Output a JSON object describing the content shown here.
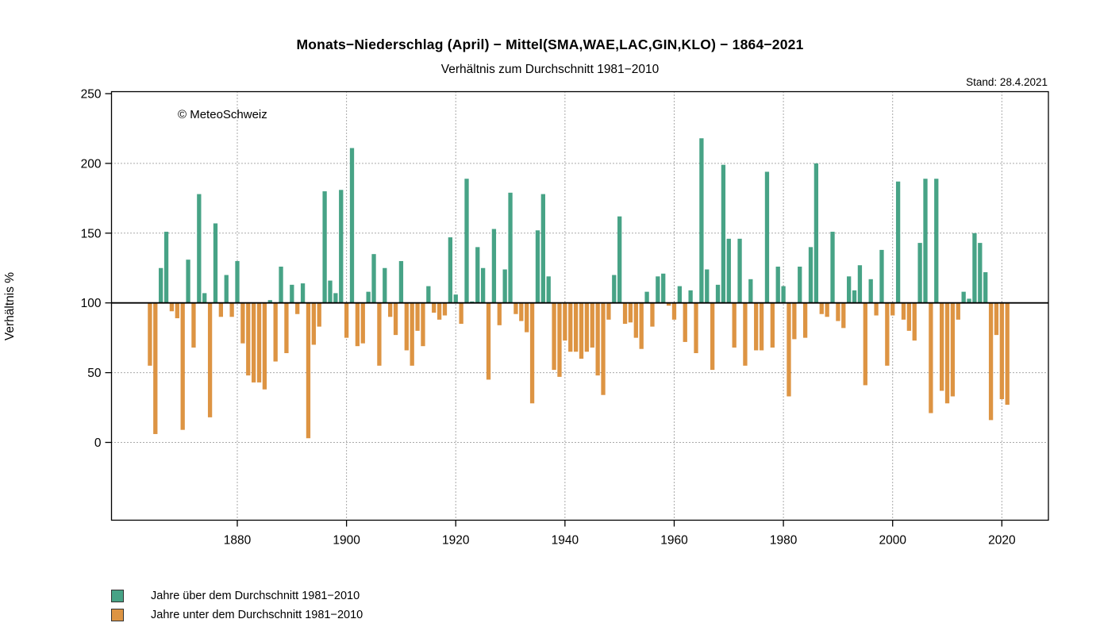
{
  "header": {
    "title": "Monats−Niederschlag (April) − Mittel(SMA,WAE,LAC,GIN,KLO) − 1864−2021",
    "subtitle": "Verhältnis zum Durchschnitt 1981−2010",
    "stand": "Stand: 28.4.2021",
    "copyright": "© MeteoSchweiz"
  },
  "colors": {
    "above": "#47a386",
    "below": "#dd9443",
    "axis": "#000000",
    "grid": "#555555"
  },
  "legend": {
    "above_label": "Jahre über dem Durchschnitt 1981−2010",
    "below_label": "Jahre unter dem Durchschnitt 1981−2010"
  },
  "chart_data": {
    "type": "bar",
    "title": "Monats−Niederschlag (April) − Mittel(SMA,WAE,LAC,GIN,KLO) − 1864−2021",
    "subtitle": "Verhältnis zum Durchschnitt 1981−2010",
    "xlabel": "",
    "ylabel": "Verhältnis %",
    "baseline": 100,
    "ylim": [
      -56,
      252
    ],
    "y_ticks": [
      0,
      50,
      100,
      150,
      200,
      250
    ],
    "h_grid_dotted": [
      0,
      50,
      150,
      200
    ],
    "x_ticks": [
      1880,
      1900,
      1920,
      1940,
      1960,
      1980,
      2000,
      2020
    ],
    "grid": "dotted",
    "legend_position": "bottom-left",
    "start_year": 1864,
    "end_year": 2021,
    "series": [
      {
        "name": "Verhältnis zum Durchschnitt 1981−2010 (%)",
        "values": [
          55,
          6,
          125,
          151,
          94,
          89,
          9,
          131,
          68,
          178,
          107,
          18,
          157,
          90,
          120,
          90,
          130,
          71,
          48,
          43,
          43,
          38,
          102,
          58,
          126,
          64,
          113,
          92,
          114,
          3,
          70,
          83,
          180,
          116,
          107,
          181,
          75,
          211,
          69,
          71,
          108,
          135,
          55,
          125,
          90,
          77,
          130,
          66,
          55,
          80,
          69,
          112,
          93,
          88,
          91,
          147,
          106,
          85,
          189,
          101,
          140,
          125,
          45,
          153,
          84,
          124,
          179,
          92,
          87,
          79,
          28,
          152,
          178,
          119,
          52,
          47,
          73,
          65,
          65,
          60,
          65,
          68,
          48,
          34,
          88,
          120,
          162,
          85,
          86,
          75,
          67,
          108,
          83,
          119,
          121,
          98,
          88,
          112,
          72,
          109,
          64,
          218,
          124,
          52,
          113,
          199,
          146,
          68,
          146,
          55,
          117,
          66,
          66,
          194,
          68,
          126,
          112,
          33,
          74,
          126,
          75,
          140,
          200,
          92,
          90,
          151,
          87,
          82,
          119,
          109,
          127,
          41,
          117,
          91,
          138,
          55,
          91,
          187,
          88,
          80,
          73,
          143,
          189,
          21,
          189,
          37,
          28,
          33,
          88,
          108,
          103,
          150,
          143,
          122,
          16,
          77,
          31,
          27
        ]
      }
    ]
  }
}
